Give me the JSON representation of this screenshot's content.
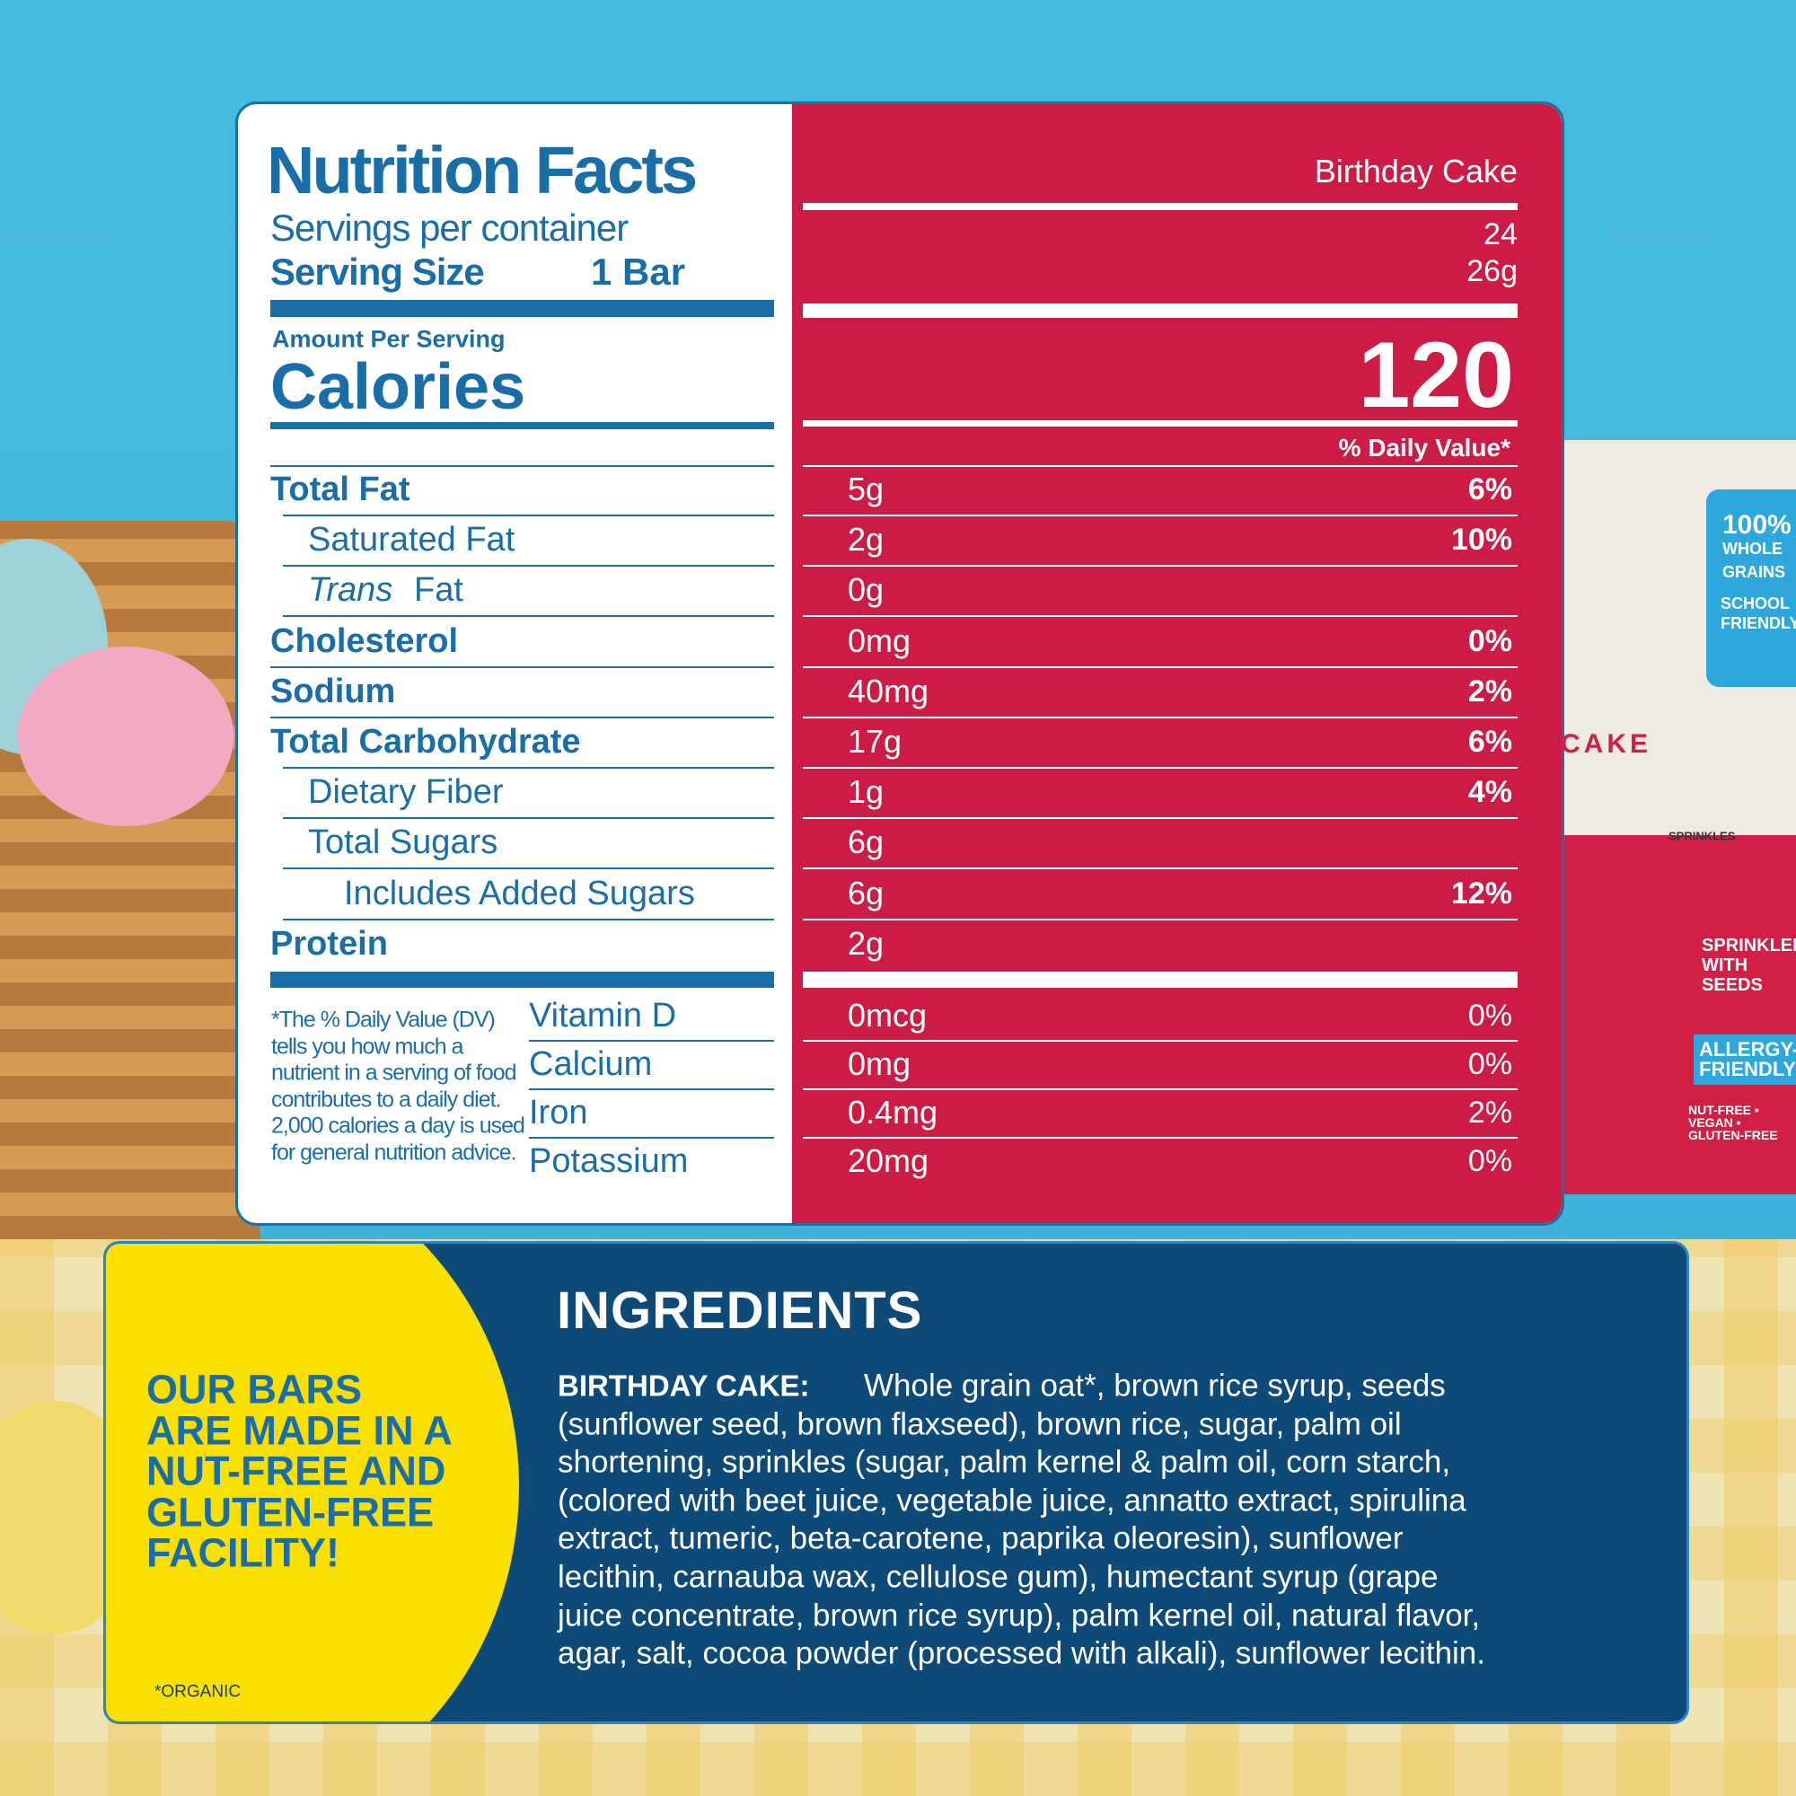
{
  "nutrition": {
    "title": "Nutrition Facts",
    "servings_label": "Servings per container",
    "serving_size_label": "Serving Size",
    "serving_size_unit": "1 Bar",
    "amount_per_serving": "Amount Per Serving",
    "calories_label": "Calories",
    "flavor": "Birthday Cake",
    "servings_value": "24",
    "serving_size_value": "26g",
    "calories_value": "120",
    "dv_header": "% Daily Value*",
    "rows": [
      {
        "name": "Total Fat",
        "amount": "5g",
        "dv": "6%"
      },
      {
        "name": "Saturated Fat",
        "amount": "2g",
        "dv": "10%"
      },
      {
        "italic": "Trans",
        "name": "Fat",
        "amount": "0g"
      },
      {
        "name": "Cholesterol",
        "amount": "0mg",
        "dv": "0%"
      },
      {
        "name": "Sodium",
        "amount": "40mg",
        "dv": "2%"
      },
      {
        "name": "Total Carbohydrate",
        "amount": "17g",
        "dv": "6%"
      },
      {
        "name": "Dietary Fiber",
        "amount": "1g",
        "dv": "4%"
      },
      {
        "name": "Total Sugars",
        "amount": "6g"
      },
      {
        "name": "Includes Added Sugars",
        "amount": "6g",
        "dv": "12%"
      },
      {
        "name": "Protein",
        "amount": "2g"
      }
    ],
    "footnote": [
      "*The % Daily Value (DV)",
      "tells you how much a",
      "nutrient in a serving of food",
      "contributes to a daily diet.",
      "2,000 calories a day is used",
      "for general nutrition advice."
    ],
    "vitamins": [
      {
        "name": "Vitamin D",
        "amount": "0mcg",
        "dv": "0%"
      },
      {
        "name": "Calcium",
        "amount": "0mg",
        "dv": "0%"
      },
      {
        "name": "Iron",
        "amount": "0.4mg",
        "dv": "2%"
      },
      {
        "name": "Potassium",
        "amount": "20mg",
        "dv": "0%"
      }
    ]
  },
  "ingredients": {
    "title": "INGREDIENTS",
    "label": "BIRTHDAY CAKE:",
    "lines": [
      "Whole grain oat*, brown rice syrup, seeds",
      "(sunflower seed, brown flaxseed), brown rice, sugar, palm oil",
      "shortening, sprinkles (sugar, palm kernel & palm oil, corn starch,",
      "(colored with beet juice, vegetable juice, annatto extract, spirulina",
      "extract, tumeric, beta-carotene, paprika oleoresin), sunflower",
      "lecithin, carnauba wax, cellulose gum), humectant syrup (grape",
      "juice concentrate, brown rice syrup), palm kernel oil, natural flavor,",
      "agar, salt, cocoa powder (processed with alkali), sunflower lecithin."
    ]
  },
  "callout": {
    "lines": [
      "OUR BARS",
      "ARE MADE IN A",
      "NUT-FREE AND",
      "GLUTEN-FREE",
      "FACILITY!"
    ],
    "footnote": "*ORGANIC"
  },
  "package": {
    "badge": [
      "100%",
      "WHOLE",
      "GRAINS"
    ],
    "badge2": [
      "SCHOOL",
      "FRIENDLY"
    ],
    "flavor": "CAKE",
    "sprinkles": "SPRINKLES",
    "seeds": "SPRINKLED WITH SEEDS",
    "allergy": "ALLERGY-FRIENDLY",
    "claims": "NUT-FREE • VEGAN • GLUTEN-FREE"
  }
}
